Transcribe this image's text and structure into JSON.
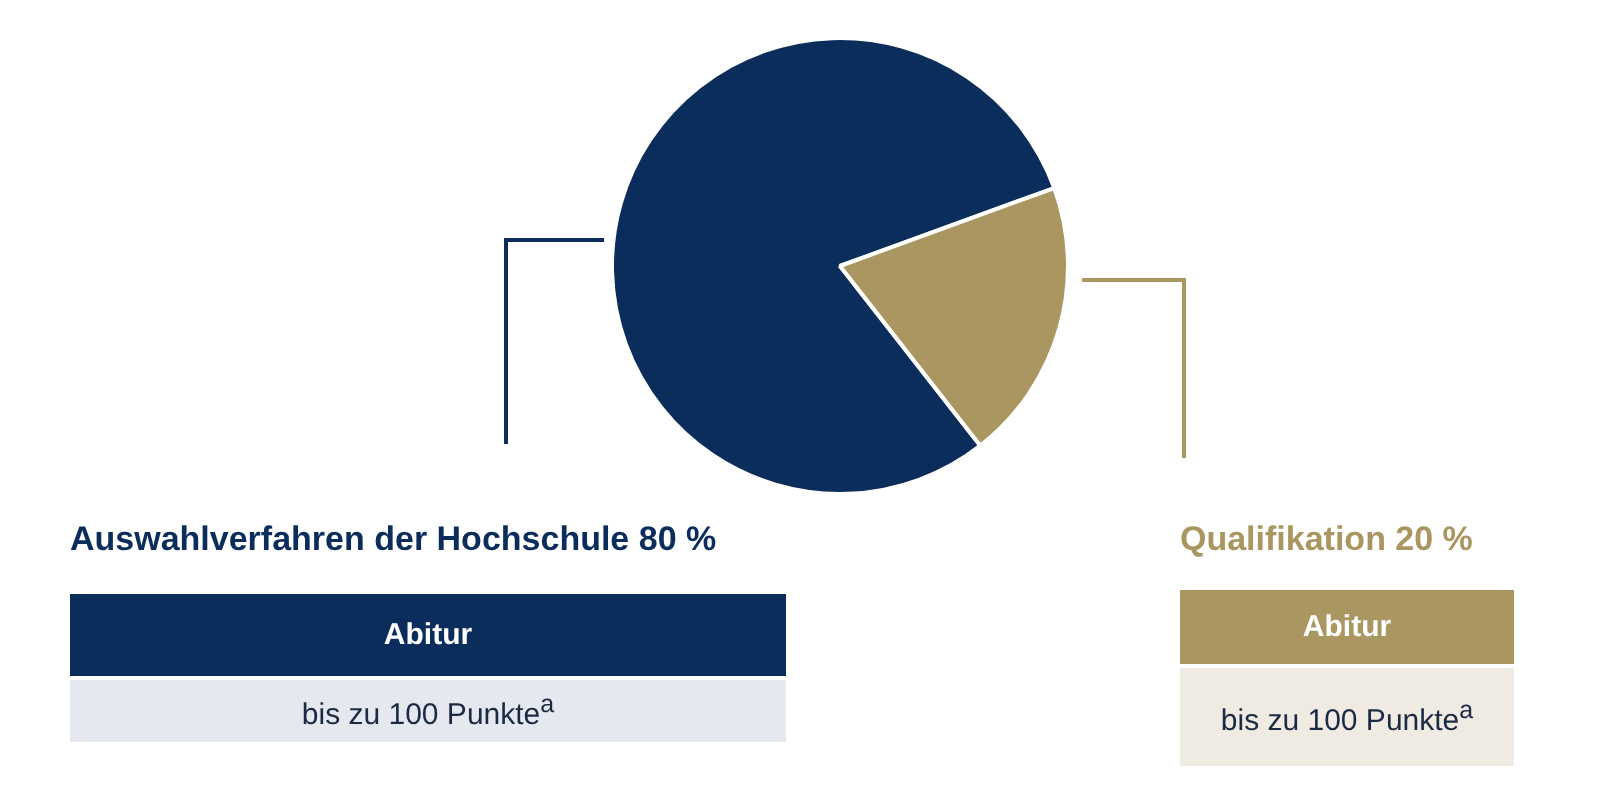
{
  "chart_data": {
    "type": "pie",
    "categories": [
      "Auswahlverfahren der Hochschule 80 %",
      "Qualifikation 20 %"
    ],
    "values": [
      80,
      20
    ],
    "colors": [
      "#0b2d5b",
      "#aa9660"
    ],
    "annotations": [
      "Abitur",
      "bis zu 100 Punkte$^{a}$",
      "Abitur",
      "bis zu 100 Punkte$^{a}$"
    ]
  }
}
